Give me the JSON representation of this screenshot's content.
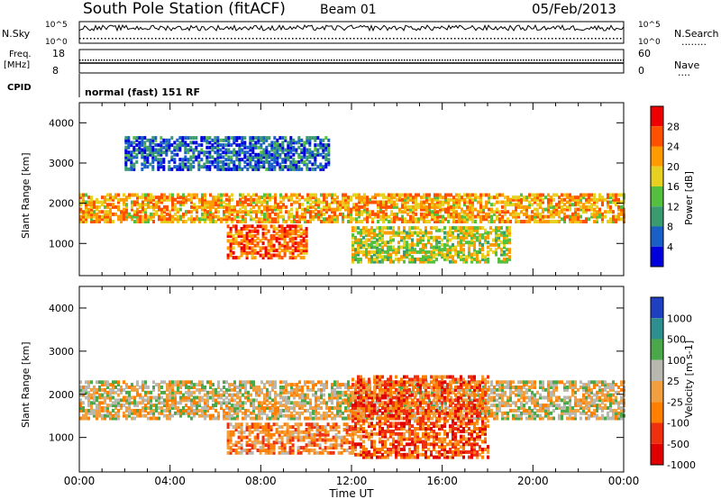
{
  "header": {
    "station": "South Pole Station (fitACF)",
    "beam": "Beam 01",
    "date": "05/Feb/2013"
  },
  "status_panels": {
    "nsky_label": "N.Sky",
    "nsearch_label": "N.Search",
    "freq_label": "Freq.",
    "freq_unit": "[MHz]",
    "nave_label": "Nave",
    "cpid_label": "CPID",
    "cpid_text": "normal (fast) 151 RF",
    "left_ticks_noise": [
      "10^5",
      "10^0"
    ],
    "right_ticks_noise": [
      "10^5",
      "10^0"
    ],
    "left_ticks_freq": [
      "18",
      "8"
    ],
    "right_ticks_nave": [
      "60",
      "0"
    ]
  },
  "xaxis": {
    "label": "Time UT",
    "ticks": [
      "00:00",
      "04:00",
      "08:00",
      "12:00",
      "16:00",
      "20:00",
      "00:00"
    ]
  },
  "colors": {
    "power": [
      "#0000dd",
      "#1a5fc8",
      "#3a9a70",
      "#55c040",
      "#e8d020",
      "#ff9a00",
      "#ff5000",
      "#ee0000"
    ],
    "velocity": [
      "#1e3fbf",
      "#2f8f8f",
      "#4aa84a",
      "#b8b8b0",
      "#f0a040",
      "#ff8000",
      "#ee3010",
      "#e00000"
    ]
  },
  "chart_data": [
    {
      "type": "heatmap",
      "title": "Power",
      "ylabel": "Slant Range [km]",
      "xlabel": "",
      "xlim": [
        0,
        24
      ],
      "ylim": [
        200,
        4500
      ],
      "yticks": [
        1000,
        2000,
        3000,
        4000
      ],
      "colorbar": {
        "label": "Power [dB]",
        "ticks": [
          4,
          8,
          12,
          16,
          20,
          24,
          28
        ],
        "range": [
          0,
          30
        ]
      },
      "bands": [
        {
          "x": [
            0,
            24
          ],
          "y": [
            1500,
            2200
          ],
          "value": 20
        },
        {
          "x": [
            6.5,
            10
          ],
          "y": [
            600,
            1400
          ],
          "value": 24
        },
        {
          "x": [
            12,
            19
          ],
          "y": [
            500,
            1400
          ],
          "value": 16
        },
        {
          "x": [
            2,
            11
          ],
          "y": [
            2800,
            3600
          ],
          "value": 6
        }
      ]
    },
    {
      "type": "heatmap",
      "title": "Velocity",
      "ylabel": "Slant Range [km]",
      "xlabel": "Time UT",
      "xlim": [
        0,
        24
      ],
      "ylim": [
        200,
        4500
      ],
      "yticks": [
        1000,
        2000,
        3000,
        4000
      ],
      "colorbar": {
        "label": "Velocity [m s-1]",
        "ticks": [
          1000,
          500,
          100,
          25,
          -25,
          -100,
          -500,
          -1000
        ],
        "range": [
          -1000,
          1000
        ]
      },
      "bands": [
        {
          "x": [
            0,
            24
          ],
          "y": [
            1400,
            2300
          ],
          "value": 0
        },
        {
          "x": [
            6.5,
            12
          ],
          "y": [
            600,
            1300
          ],
          "value": -300
        },
        {
          "x": [
            12,
            18
          ],
          "y": [
            500,
            2400
          ],
          "value": -500
        }
      ]
    }
  ]
}
